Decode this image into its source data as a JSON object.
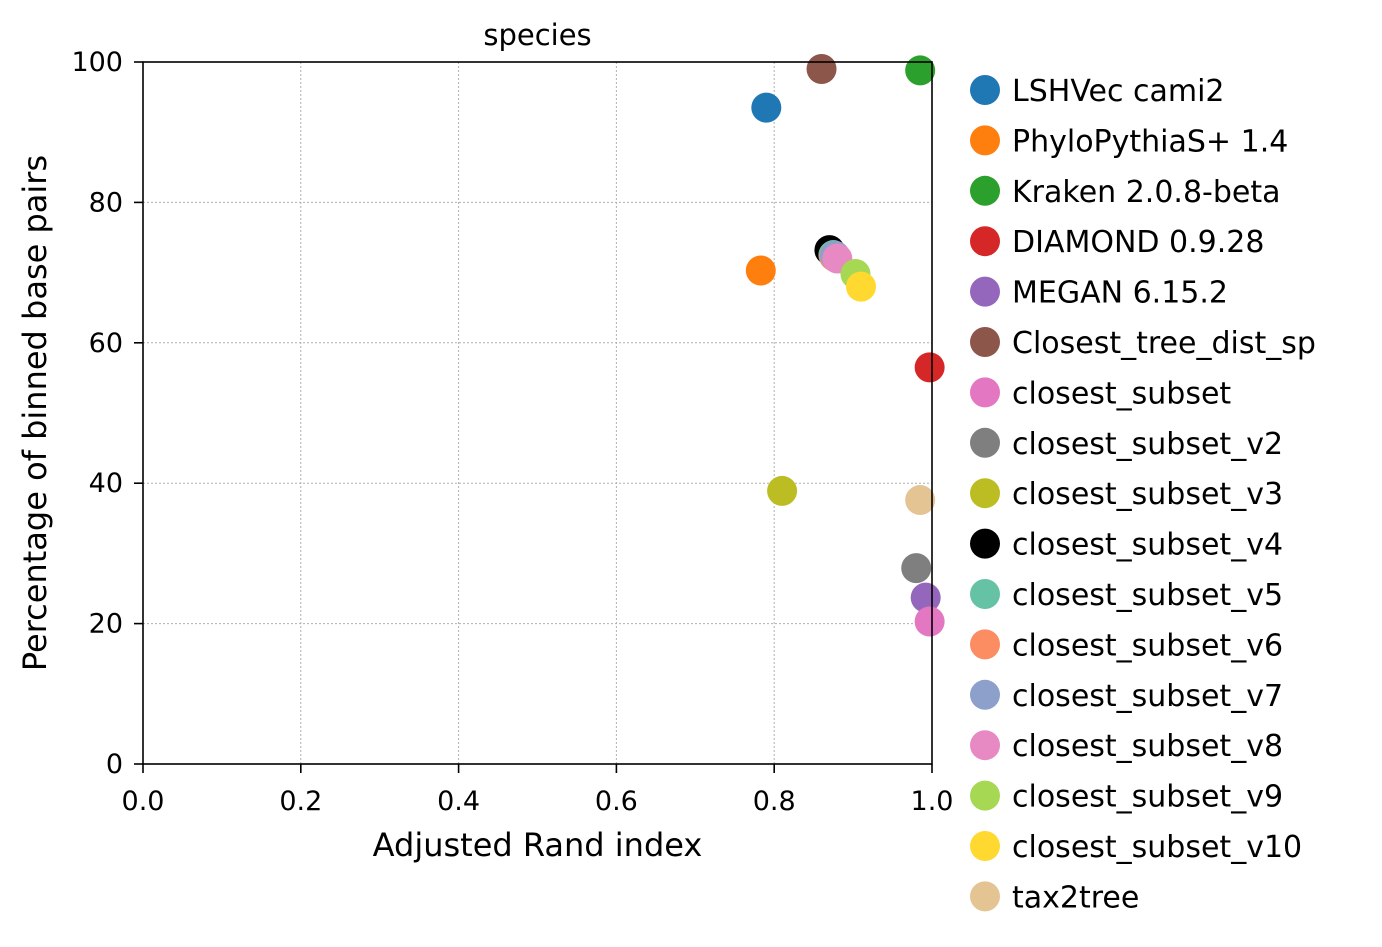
{
  "chart_data": {
    "type": "scatter",
    "title": "species",
    "xlabel": "Adjusted Rand index",
    "ylabel": "Percentage of binned base pairs",
    "xlim": [
      0.0,
      1.0
    ],
    "ylim": [
      0,
      100
    ],
    "xticks": [
      "0.0",
      "0.2",
      "0.4",
      "0.6",
      "0.8",
      "1.0"
    ],
    "yticks": [
      "0",
      "20",
      "40",
      "60",
      "80",
      "100"
    ],
    "grid": true,
    "legend_position": "outside-right",
    "series": [
      {
        "name": "LSHVec cami2",
        "color": "#1f77b4",
        "x": 0.79,
        "y": 93.5
      },
      {
        "name": "PhyloPythiaS+ 1.4",
        "color": "#ff7f0e",
        "x": 0.783,
        "y": 70.3
      },
      {
        "name": "Kraken 2.0.8-beta",
        "color": "#2ca02c",
        "x": 0.985,
        "y": 98.8
      },
      {
        "name": "DIAMOND 0.9.28",
        "color": "#d62728",
        "x": 0.997,
        "y": 56.5
      },
      {
        "name": "MEGAN 6.15.2",
        "color": "#9467bd",
        "x": 0.992,
        "y": 23.7
      },
      {
        "name": "Closest_tree_dist_sp",
        "color": "#8c564b",
        "x": 0.86,
        "y": 99.0
      },
      {
        "name": "closest_subset",
        "color": "#e377c2",
        "x": 0.997,
        "y": 20.3
      },
      {
        "name": "closest_subset_v2",
        "color": "#7f7f7f",
        "x": 0.98,
        "y": 27.9
      },
      {
        "name": "closest_subset_v3",
        "color": "#bcbd22",
        "x": 0.81,
        "y": 38.9
      },
      {
        "name": "closest_subset_v4",
        "color": "#000000",
        "x": 0.87,
        "y": 73.2
      },
      {
        "name": "closest_subset_v5",
        "color": "#66c2a5",
        "x": 0.875,
        "y": 72.5
      },
      {
        "name": "closest_subset_v6",
        "color": "#fc8d62",
        "x": 0.876,
        "y": 72.3
      },
      {
        "name": "closest_subset_v7",
        "color": "#8da0cb",
        "x": 0.877,
        "y": 72.4
      },
      {
        "name": "closest_subset_v8",
        "color": "#e78ac3",
        "x": 0.88,
        "y": 72.0
      },
      {
        "name": "closest_subset_v9",
        "color": "#a6d854",
        "x": 0.903,
        "y": 69.8
      },
      {
        "name": "closest_subset_v10",
        "color": "#ffd92f",
        "x": 0.91,
        "y": 68.0
      },
      {
        "name": "tax2tree",
        "color": "#e5c494",
        "x": 0.985,
        "y": 37.6
      }
    ]
  }
}
